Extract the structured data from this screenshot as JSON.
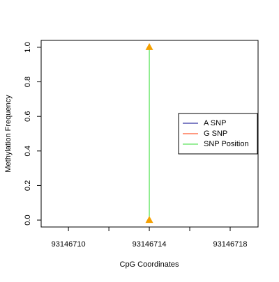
{
  "chart_data": {
    "type": "line",
    "xlabel": "CpG Coordinates",
    "ylabel": "Methylation Frequency",
    "xlim": [
      93146708.65,
      93146719.38
    ],
    "xticks": [
      93146710,
      {
        "value": 93146712,
        "label": null
      },
      93146714,
      {
        "value": 93146716,
        "label": null
      },
      93146718
    ],
    "ylim": [
      -0.04,
      1.04
    ],
    "yticks": [
      {
        "value": 0,
        "label": "0.0"
      },
      {
        "value": 0.2,
        "label": "0.2"
      },
      {
        "value": 0.4,
        "label": "0.4"
      },
      {
        "value": 0.6,
        "label": "0.6"
      },
      {
        "value": 0.8,
        "label": "0.8"
      },
      {
        "value": 1,
        "label": "1.0"
      }
    ],
    "legend": "right",
    "series": [
      {
        "name": "A SNP",
        "color": "#00008b",
        "x": [],
        "values": []
      },
      {
        "name": "G SNP",
        "color": "#ff3300",
        "x": [],
        "values": []
      },
      {
        "name": "SNP Position",
        "color": "#33dd33",
        "marker": "triangle",
        "marker_color": "#f5a000",
        "x": [
          93146714,
          93146714
        ],
        "values": [
          0,
          1
        ]
      }
    ]
  }
}
